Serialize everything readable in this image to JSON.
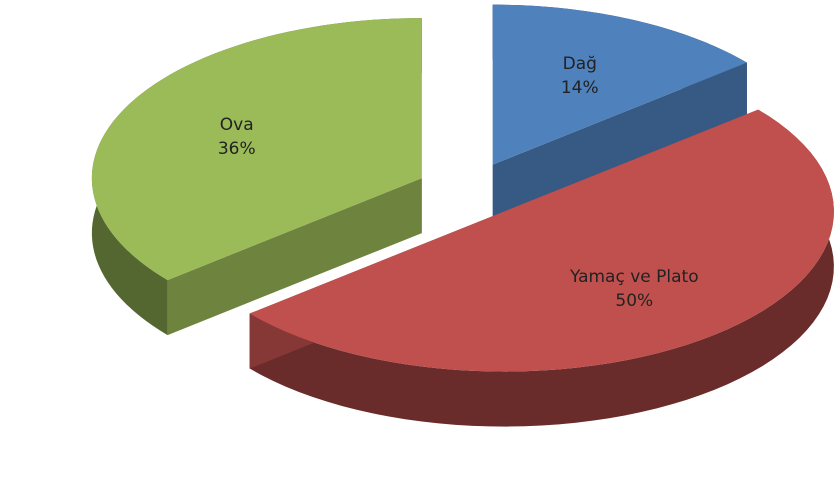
{
  "chart_data": {
    "type": "pie",
    "three_d": true,
    "exploded": true,
    "categories": [
      "Dağ",
      "Yamaç ve Plato",
      "Ova"
    ],
    "values": [
      14,
      50,
      36
    ],
    "value_labels": [
      "14%",
      "50%",
      "36%"
    ],
    "colors": [
      "#4f81bd",
      "#c0504d",
      "#9bbb59"
    ]
  }
}
